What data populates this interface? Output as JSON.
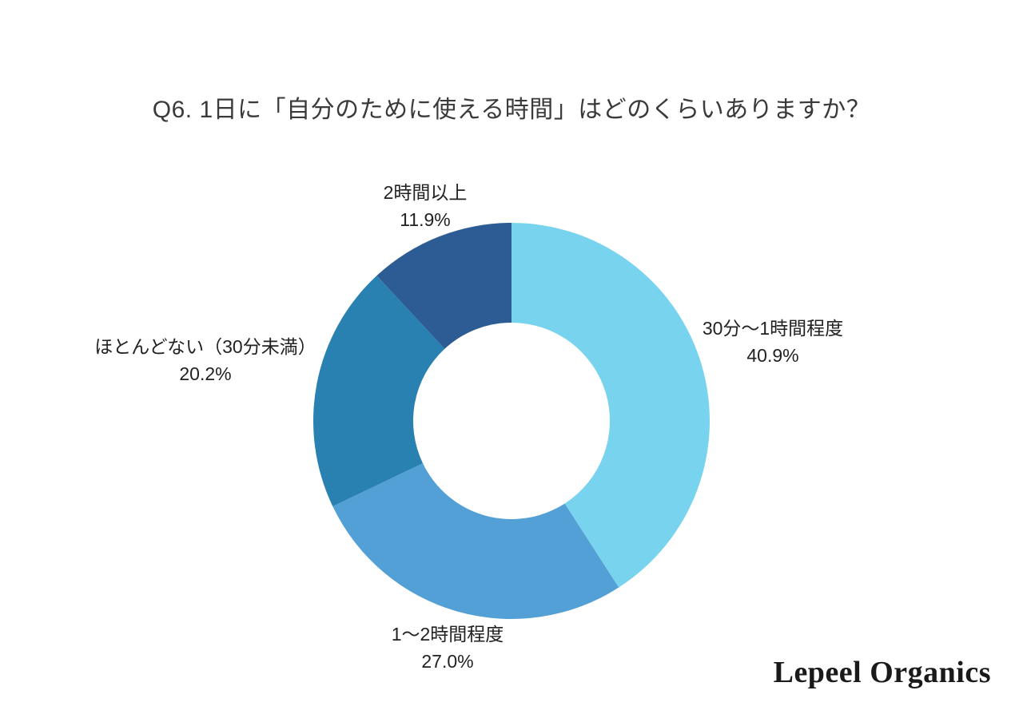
{
  "page": {
    "background": "#ffffff",
    "logo_text": "Lepeel Organics"
  },
  "chart_data": {
    "type": "pie",
    "subtype": "donut",
    "title": "Q6. 1日に「自分のために使える時間」はどのくらいありますか？",
    "start_angle_deg": 0,
    "direction": "clockwise",
    "inner_radius_ratio": 0.496,
    "legend": "none",
    "labels_position": "outside",
    "segments": [
      {
        "label": "30分〜1時間程度",
        "value": 40.9,
        "pct_label": "40.9%",
        "color": "#78D3EE"
      },
      {
        "label": "1〜2時間程度",
        "value": 27.0,
        "pct_label": "27.0%",
        "color": "#52A0D6"
      },
      {
        "label": "ほとんどない（30分未満）",
        "value": 20.2,
        "pct_label": "20.2%",
        "color": "#2981B2"
      },
      {
        "label": "2時間以上",
        "value": 11.9,
        "pct_label": "11.9%",
        "color": "#2D5C95"
      }
    ]
  }
}
